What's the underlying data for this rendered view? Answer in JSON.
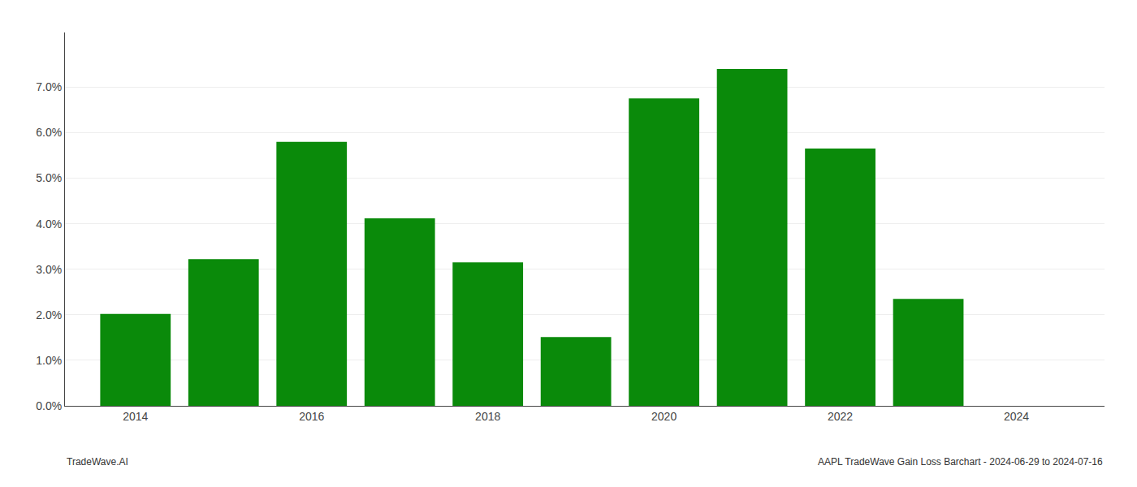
{
  "chart_data": {
    "type": "bar",
    "x": [
      2014,
      2015,
      2016,
      2017,
      2018,
      2019,
      2020,
      2021,
      2022,
      2023
    ],
    "values": [
      0.0202,
      0.0322,
      0.058,
      0.0412,
      0.0315,
      0.0151,
      0.0675,
      0.074,
      0.0565,
      0.0235
    ],
    "color": "#0a8a0a",
    "xlim": [
      2013.2,
      2025.0
    ],
    "xticks": [
      2014,
      2016,
      2018,
      2020,
      2022,
      2024
    ],
    "ylim": [
      0,
      0.082
    ],
    "yticks": [
      {
        "value": 0.0,
        "label": "0.0%"
      },
      {
        "value": 0.01,
        "label": "1.0%"
      },
      {
        "value": 0.02,
        "label": "2.0%"
      },
      {
        "value": 0.03,
        "label": "3.0%"
      },
      {
        "value": 0.04,
        "label": "4.0%"
      },
      {
        "value": 0.05,
        "label": "5.0%"
      },
      {
        "value": 0.06,
        "label": "6.0%"
      },
      {
        "value": 0.07,
        "label": "7.0%"
      }
    ],
    "grid": true,
    "annotations": [
      "TradeWave.AI",
      "AAPL TradeWave Gain Loss Barchart - 2024-06-29 to 2024-07-16"
    ]
  }
}
